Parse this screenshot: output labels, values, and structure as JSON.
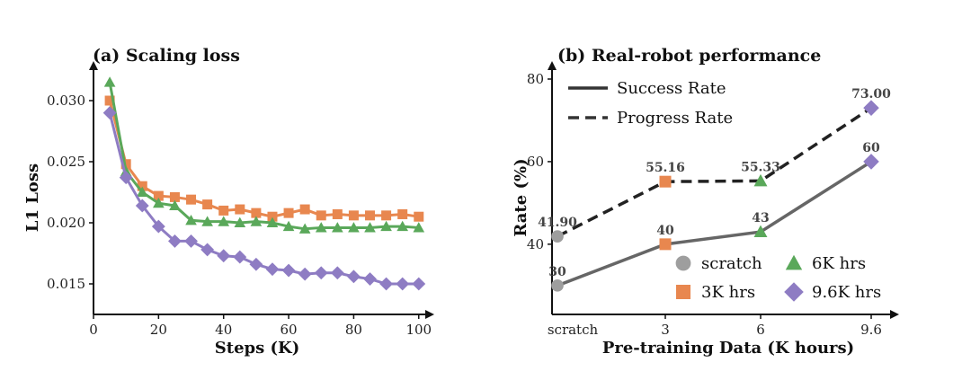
{
  "chart_data": [
    {
      "type": "line",
      "title": "(a) Scaling loss",
      "xlabel": "Steps (K)",
      "ylabel": "L1 Loss",
      "xlim": [
        0,
        102
      ],
      "ylim": [
        0.0125,
        0.0325
      ],
      "xticks": [
        0,
        20,
        40,
        60,
        80,
        100
      ],
      "yticks": [
        0.015,
        0.02,
        0.025,
        0.03
      ],
      "ytick_labels": [
        "0.015",
        "0.020",
        "0.025",
        "0.030"
      ],
      "legend": false,
      "grid": false,
      "series": [
        {
          "color": "#e8874f",
          "marker": "square",
          "x": [
            5,
            10,
            15,
            20,
            25,
            30,
            35,
            40,
            45,
            50,
            55,
            60,
            65,
            70,
            75,
            80,
            85,
            90,
            95,
            100
          ],
          "y": [
            0.03,
            0.0248,
            0.023,
            0.0222,
            0.0221,
            0.0219,
            0.0215,
            0.021,
            0.0211,
            0.0208,
            0.0205,
            0.0208,
            0.0211,
            0.0206,
            0.0207,
            0.0206,
            0.0206,
            0.0206,
            0.0207,
            0.0205
          ]
        },
        {
          "color": "#5aa85a",
          "marker": "triangle",
          "x": [
            5,
            10,
            15,
            20,
            25,
            30,
            35,
            40,
            45,
            50,
            55,
            60,
            65,
            70,
            75,
            80,
            85,
            90,
            95,
            100
          ],
          "y": [
            0.0315,
            0.0242,
            0.0225,
            0.0216,
            0.0214,
            0.0202,
            0.0201,
            0.0201,
            0.02,
            0.0201,
            0.02,
            0.0197,
            0.0195,
            0.0196,
            0.0196,
            0.0196,
            0.0196,
            0.0197,
            0.0197,
            0.0196
          ]
        },
        {
          "color": "#8e7cc3",
          "marker": "diamond",
          "x": [
            5,
            10,
            15,
            20,
            25,
            30,
            35,
            40,
            45,
            50,
            55,
            60,
            65,
            70,
            75,
            80,
            85,
            90,
            95,
            100
          ],
          "y": [
            0.029,
            0.0237,
            0.0214,
            0.0197,
            0.0185,
            0.0185,
            0.0178,
            0.0173,
            0.0172,
            0.0166,
            0.0162,
            0.0161,
            0.0158,
            0.0159,
            0.0159,
            0.0156,
            0.0154,
            0.015,
            0.015,
            0.015
          ]
        }
      ]
    },
    {
      "type": "line",
      "title": "(b) Real-robot performance",
      "xlabel": "Pre-training Data (K hours)",
      "ylabel": "Rate (%)",
      "categories": [
        "scratch",
        "3",
        "6",
        "9.6"
      ],
      "ylim": [
        23,
        80
      ],
      "yticks": [
        40,
        60,
        80
      ],
      "grid": false,
      "legend_lines": [
        {
          "label": "Success Rate",
          "style": "solid"
        },
        {
          "label": "Progress Rate",
          "style": "dashed"
        }
      ],
      "legend_markers": [
        {
          "label": "scratch",
          "marker": "circle",
          "color": "#9e9e9e"
        },
        {
          "label": "6K hrs",
          "marker": "triangle",
          "color": "#5aa85a"
        },
        {
          "label": "3K hrs",
          "marker": "square",
          "color": "#e8874f"
        },
        {
          "label": "9.6K hrs",
          "marker": "diamond",
          "color": "#8e7cc3"
        }
      ],
      "series": [
        {
          "name": "Success Rate",
          "style": "solid",
          "color": "#666666",
          "values": [
            30,
            40,
            43,
            60
          ],
          "labels": [
            "30",
            "40",
            "43",
            "60"
          ]
        },
        {
          "name": "Progress Rate",
          "style": "dashed",
          "color": "#222222",
          "values": [
            41.9,
            55.16,
            55.33,
            73.0
          ],
          "labels": [
            "41.90",
            "55.16",
            "55.33",
            "73.00"
          ]
        }
      ],
      "point_markers": [
        "circle",
        "square",
        "triangle",
        "diamond"
      ],
      "point_colors": [
        "#9e9e9e",
        "#e8874f",
        "#5aa85a",
        "#8e7cc3"
      ]
    }
  ]
}
